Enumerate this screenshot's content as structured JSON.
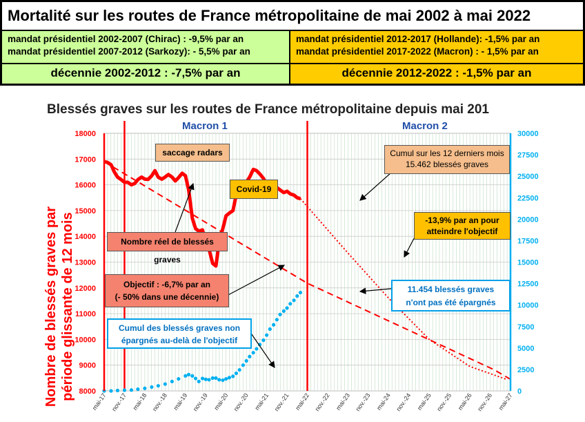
{
  "header": {
    "title": "Mortalité sur les routes de France métropolitaine de mai 2002 à mai 2022",
    "left_line1": "mandat présidentiel 2002-2007 (Chirac) : -9,5% par an",
    "left_line2": "mandat présidentiel 2007-2012 (Sarkozy): - 5,5% par an",
    "right_line1": "mandat présidentiel 2012-2017 (Hollande): -1,5% par an",
    "right_line2": "mandat présidentiel 2017-2022 (Macron) : - 1,5% par an",
    "left_decade": "décennie 2002-2012 : -7,5% par an",
    "right_decade": "décennie 2012-2022 : -1,5% par an"
  },
  "chart_data": {
    "type": "line",
    "title": "Blessés graves sur les routes de France métropolitaine depuis mai 201",
    "ylabel_line1": "Nombre de blessés graves par",
    "ylabel_line2": "période glissante de 12 mois",
    "ylim": [
      8000,
      18000
    ],
    "y2lim": [
      0,
      30000
    ],
    "yticks": [
      8000,
      9000,
      10000,
      11000,
      12000,
      13000,
      14000,
      15000,
      16000,
      17000,
      18000
    ],
    "y2ticks": [
      0,
      2500,
      5000,
      7500,
      10000,
      12500,
      15000,
      17500,
      20000,
      22500,
      25000,
      27500,
      30000
    ],
    "xticks": [
      "mai-17",
      "nov.-17",
      "mai-18",
      "nov.-18",
      "mai-19",
      "nov.-19",
      "mai-20",
      "nov.-20",
      "mai-21",
      "nov.-21",
      "mai-22",
      "nov.-22",
      "mai-23",
      "nov.-23",
      "mai-24",
      "nov.-24",
      "mai-25",
      "nov.-25",
      "mai-26",
      "nov.-26",
      "mai-27"
    ],
    "period_labels": {
      "left": "Macron 1",
      "right": "Macron 2"
    },
    "vertical_lines_at": [
      "nov.-17",
      "mai-22"
    ],
    "grid": true,
    "series": [
      {
        "name": "Nombre réel de blessés graves",
        "axis": "left",
        "style": "solid",
        "color": "#ff0000",
        "points": [
          [
            0.0,
            16900
          ],
          [
            0.08,
            16870
          ],
          [
            0.17,
            16780
          ],
          [
            0.25,
            16500
          ],
          [
            0.33,
            16300
          ],
          [
            0.42,
            16200
          ],
          [
            0.5,
            16100
          ],
          [
            0.58,
            16100
          ],
          [
            0.67,
            16000
          ],
          [
            0.75,
            16050
          ],
          [
            0.83,
            16200
          ],
          [
            0.92,
            16300
          ],
          [
            1.0,
            16220
          ],
          [
            1.08,
            16210
          ],
          [
            1.17,
            16350
          ],
          [
            1.25,
            16550
          ],
          [
            1.33,
            16300
          ],
          [
            1.42,
            16220
          ],
          [
            1.5,
            16300
          ],
          [
            1.58,
            16400
          ],
          [
            1.67,
            16300
          ],
          [
            1.75,
            16150
          ],
          [
            1.83,
            16280
          ],
          [
            1.92,
            16450
          ],
          [
            2.0,
            16350
          ],
          [
            2.08,
            15800
          ],
          [
            2.17,
            14700
          ],
          [
            2.25,
            14300
          ],
          [
            2.33,
            14200
          ],
          [
            2.42,
            14250
          ],
          [
            2.5,
            13800
          ],
          [
            2.58,
            13500
          ],
          [
            2.67,
            12950
          ],
          [
            2.75,
            12850
          ],
          [
            2.83,
            13800
          ],
          [
            2.92,
            14300
          ],
          [
            3.0,
            14800
          ],
          [
            3.08,
            14900
          ],
          [
            3.17,
            15000
          ],
          [
            3.25,
            15600
          ],
          [
            3.33,
            15850
          ],
          [
            3.42,
            16000
          ],
          [
            3.5,
            16100
          ],
          [
            3.58,
            16300
          ],
          [
            3.67,
            16600
          ],
          [
            3.75,
            16550
          ],
          [
            3.83,
            16420
          ],
          [
            3.92,
            16250
          ],
          [
            4.0,
            16000
          ],
          [
            4.08,
            16100
          ],
          [
            4.17,
            16000
          ],
          [
            4.25,
            15900
          ],
          [
            4.33,
            15800
          ],
          [
            4.42,
            15700
          ],
          [
            4.5,
            15750
          ],
          [
            4.58,
            15650
          ],
          [
            4.67,
            15600
          ],
          [
            4.75,
            15500
          ],
          [
            4.83,
            15462
          ]
        ]
      },
      {
        "name": "Objectif : -6,7% par an",
        "axis": "left",
        "style": "dashed",
        "color": "#ff0000",
        "points": [
          [
            0.0,
            16900
          ],
          [
            5.0,
            12180
          ],
          [
            9.6,
            8820
          ],
          [
            10.0,
            8450
          ]
        ]
      },
      {
        "name": "-13,9% par an pour atteindre l'objectif",
        "axis": "left",
        "style": "dotted",
        "color": "#ff0000",
        "points": [
          [
            4.83,
            15462
          ],
          [
            6.0,
            13350
          ],
          [
            7.0,
            11600
          ],
          [
            8.0,
            10000
          ],
          [
            9.0,
            8950
          ],
          [
            9.9,
            8450
          ]
        ]
      },
      {
        "name": "Cumul des blessés graves non épargnés au-delà de l'objectif",
        "axis": "right",
        "style": "dots",
        "color": "#00b0f0",
        "points": [
          [
            0.0,
            0
          ],
          [
            0.17,
            0
          ],
          [
            0.33,
            50
          ],
          [
            0.5,
            80
          ],
          [
            0.67,
            100
          ],
          [
            0.83,
            200
          ],
          [
            1.0,
            300
          ],
          [
            1.17,
            450
          ],
          [
            1.33,
            600
          ],
          [
            1.5,
            800
          ],
          [
            1.67,
            1100
          ],
          [
            1.83,
            1400
          ],
          [
            2.0,
            1750
          ],
          [
            2.08,
            1900
          ],
          [
            2.17,
            1750
          ],
          [
            2.25,
            1450
          ],
          [
            2.33,
            1100
          ],
          [
            2.42,
            1450
          ],
          [
            2.5,
            1350
          ],
          [
            2.58,
            1300
          ],
          [
            2.67,
            1500
          ],
          [
            2.75,
            1500
          ],
          [
            2.83,
            1300
          ],
          [
            2.92,
            1250
          ],
          [
            3.0,
            1400
          ],
          [
            3.08,
            1550
          ],
          [
            3.17,
            1700
          ],
          [
            3.25,
            2050
          ],
          [
            3.33,
            2450
          ],
          [
            3.42,
            3000
          ],
          [
            3.5,
            3500
          ],
          [
            3.58,
            4000
          ],
          [
            3.67,
            4450
          ],
          [
            3.75,
            4900
          ],
          [
            3.83,
            5400
          ],
          [
            3.92,
            5900
          ],
          [
            4.0,
            6500
          ],
          [
            4.08,
            7200
          ],
          [
            4.17,
            7700
          ],
          [
            4.25,
            8300
          ],
          [
            4.33,
            8900
          ],
          [
            4.42,
            9300
          ],
          [
            4.5,
            9650
          ],
          [
            4.58,
            10150
          ],
          [
            4.67,
            10550
          ],
          [
            4.75,
            11050
          ],
          [
            4.83,
            11454
          ]
        ]
      }
    ],
    "annotations": {
      "saccage": "saccage radars",
      "covid": "Covid-19",
      "cumul_line1": "Cumul sur les 12 derniers mois",
      "cumul_line2": "15.462 blessés graves",
      "reel": "Nombre réel de blessés graves",
      "objectif_line1": "Objectif : -6,7% par an",
      "objectif_line2": "(- 50% dans une décennie)",
      "taux_line1": "-13,9% par an pour",
      "taux_line2": "atteindre l'objectif",
      "cumul_bleu_line1": "Cumul des blessés graves non",
      "cumul_bleu_line2": "épargnés  au-delà de l'objectif",
      "epargnes_line1": "11.454 blessés  graves",
      "epargnes_line2": "n'ont pas été épargnés"
    },
    "colors": {
      "actual": "#ff0000",
      "cumulative": "#00b0f0",
      "axis_left": "#ff0000",
      "axis_right": "#00b0f0",
      "period_label": "#1f4ea8",
      "grid": "#bfd9bf"
    }
  }
}
